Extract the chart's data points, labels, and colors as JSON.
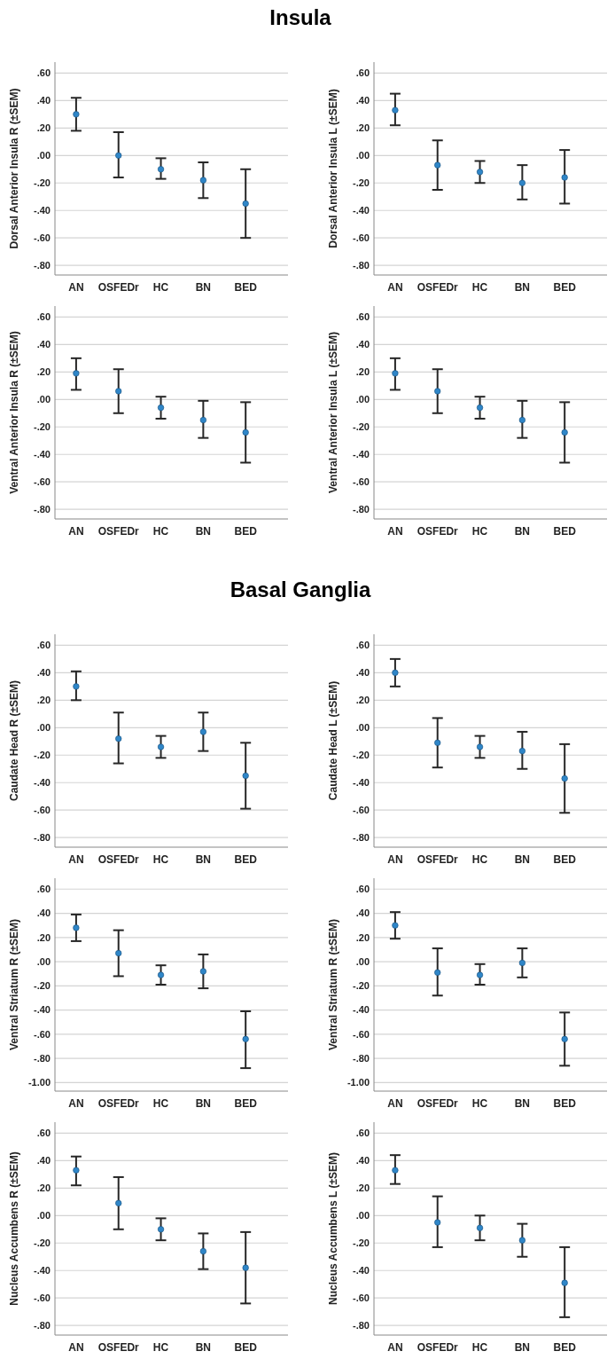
{
  "chart_data": [
    {
      "type": "scatter",
      "title": "Insula",
      "ylabel": "Dorsal Anterior Insula R (±SEM)",
      "categories": [
        "AN",
        "OSFEDr",
        "HC",
        "BN",
        "BED"
      ],
      "ylim": [
        -0.87,
        0.68
      ],
      "yticks": [
        {
          "value": -0.8,
          "label": "-.80"
        },
        {
          "value": -0.6,
          "label": "-.60"
        },
        {
          "value": -0.4,
          "label": "-.40"
        },
        {
          "value": -0.2,
          "label": "-.20"
        },
        {
          "value": 0,
          "label": ".00"
        },
        {
          "value": 0.2,
          "label": ".20"
        },
        {
          "value": 0.4,
          "label": ".40"
        },
        {
          "value": 0.6,
          "label": ".60"
        }
      ],
      "grid": "y",
      "marker": "circle",
      "series": [
        {
          "color": "#2f86c8",
          "values": [
            0.3,
            0.0,
            -0.1,
            -0.18,
            -0.35
          ],
          "errors": [
            [
              0.18,
              0.42
            ],
            [
              -0.16,
              0.17
            ],
            [
              -0.17,
              -0.02
            ],
            [
              -0.31,
              -0.05
            ],
            [
              -0.6,
              -0.1
            ]
          ]
        }
      ]
    },
    {
      "type": "scatter",
      "ylabel": "Dorsal Anterior Insula L (±SEM)",
      "categories": [
        "AN",
        "OSFEDr",
        "HC",
        "BN",
        "BED"
      ],
      "ylim": [
        -0.87,
        0.68
      ],
      "yticks": [
        {
          "value": -0.8,
          "label": "-.80"
        },
        {
          "value": -0.6,
          "label": "-.60"
        },
        {
          "value": -0.4,
          "label": "-.40"
        },
        {
          "value": -0.2,
          "label": "-.20"
        },
        {
          "value": 0,
          "label": ".00"
        },
        {
          "value": 0.2,
          "label": ".20"
        },
        {
          "value": 0.4,
          "label": ".40"
        },
        {
          "value": 0.6,
          "label": ".60"
        }
      ],
      "grid": "y",
      "marker": "circle",
      "series": [
        {
          "color": "#2f86c8",
          "values": [
            0.33,
            -0.07,
            -0.12,
            -0.2,
            -0.16
          ],
          "errors": [
            [
              0.22,
              0.45
            ],
            [
              -0.25,
              0.11
            ],
            [
              -0.2,
              -0.04
            ],
            [
              -0.32,
              -0.07
            ],
            [
              -0.35,
              0.04
            ]
          ]
        }
      ]
    },
    {
      "type": "scatter",
      "ylabel": "Ventral Anterior Insula R (±SEM)",
      "categories": [
        "AN",
        "OSFEDr",
        "HC",
        "BN",
        "BED"
      ],
      "ylim": [
        -0.87,
        0.68
      ],
      "yticks": [
        {
          "value": -0.8,
          "label": "-.80"
        },
        {
          "value": -0.6,
          "label": "-.60"
        },
        {
          "value": -0.4,
          "label": "-.40"
        },
        {
          "value": -0.2,
          "label": "-.20"
        },
        {
          "value": 0,
          "label": ".00"
        },
        {
          "value": 0.2,
          "label": ".20"
        },
        {
          "value": 0.4,
          "label": ".40"
        },
        {
          "value": 0.6,
          "label": ".60"
        }
      ],
      "grid": "y",
      "marker": "circle",
      "series": [
        {
          "color": "#2f86c8",
          "values": [
            0.19,
            0.06,
            -0.06,
            -0.15,
            -0.24
          ],
          "errors": [
            [
              0.07,
              0.3
            ],
            [
              -0.1,
              0.22
            ],
            [
              -0.14,
              0.02
            ],
            [
              -0.28,
              -0.01
            ],
            [
              -0.46,
              -0.02
            ]
          ]
        }
      ]
    },
    {
      "type": "scatter",
      "ylabel": "Ventral Anterior Insula L (±SEM)",
      "categories": [
        "AN",
        "OSFEDr",
        "HC",
        "BN",
        "BED"
      ],
      "ylim": [
        -0.87,
        0.68
      ],
      "yticks": [
        {
          "value": -0.8,
          "label": "-.80"
        },
        {
          "value": -0.6,
          "label": "-.60"
        },
        {
          "value": -0.4,
          "label": "-.40"
        },
        {
          "value": -0.2,
          "label": "-.20"
        },
        {
          "value": 0,
          "label": ".00"
        },
        {
          "value": 0.2,
          "label": ".20"
        },
        {
          "value": 0.4,
          "label": ".40"
        },
        {
          "value": 0.6,
          "label": ".60"
        }
      ],
      "grid": "y",
      "marker": "circle",
      "series": [
        {
          "color": "#2f86c8",
          "values": [
            0.19,
            0.06,
            -0.06,
            -0.15,
            -0.24
          ],
          "errors": [
            [
              0.07,
              0.3
            ],
            [
              -0.1,
              0.22
            ],
            [
              -0.14,
              0.02
            ],
            [
              -0.28,
              -0.01
            ],
            [
              -0.46,
              -0.02
            ]
          ]
        }
      ]
    },
    {
      "type": "scatter",
      "title": "Basal Ganglia",
      "ylabel": "Caudate Head R (±SEM)",
      "categories": [
        "AN",
        "OSFEDr",
        "HC",
        "BN",
        "BED"
      ],
      "ylim": [
        -0.87,
        0.68
      ],
      "yticks": [
        {
          "value": -0.8,
          "label": "-.80"
        },
        {
          "value": -0.6,
          "label": "-.60"
        },
        {
          "value": -0.4,
          "label": "-.40"
        },
        {
          "value": -0.2,
          "label": "-.20"
        },
        {
          "value": 0,
          "label": ".00"
        },
        {
          "value": 0.2,
          "label": ".20"
        },
        {
          "value": 0.4,
          "label": ".40"
        },
        {
          "value": 0.6,
          "label": ".60"
        }
      ],
      "grid": "y",
      "marker": "circle",
      "series": [
        {
          "color": "#2f86c8",
          "values": [
            0.3,
            -0.08,
            -0.14,
            -0.03,
            -0.35
          ],
          "errors": [
            [
              0.2,
              0.41
            ],
            [
              -0.26,
              0.11
            ],
            [
              -0.22,
              -0.06
            ],
            [
              -0.17,
              0.11
            ],
            [
              -0.59,
              -0.11
            ]
          ]
        }
      ]
    },
    {
      "type": "scatter",
      "ylabel": "Caudate Head L (±SEM)",
      "categories": [
        "AN",
        "OSFEDr",
        "HC",
        "BN",
        "BED"
      ],
      "ylim": [
        -0.87,
        0.68
      ],
      "yticks": [
        {
          "value": -0.8,
          "label": "-.80"
        },
        {
          "value": -0.6,
          "label": "-.60"
        },
        {
          "value": -0.4,
          "label": "-.40"
        },
        {
          "value": -0.2,
          "label": "-.20"
        },
        {
          "value": 0,
          "label": ".00"
        },
        {
          "value": 0.2,
          "label": ".20"
        },
        {
          "value": 0.4,
          "label": ".40"
        },
        {
          "value": 0.6,
          "label": ".60"
        }
      ],
      "grid": "y",
      "marker": "circle",
      "series": [
        {
          "color": "#2f86c8",
          "values": [
            0.4,
            -0.11,
            -0.14,
            -0.17,
            -0.37
          ],
          "errors": [
            [
              0.3,
              0.5
            ],
            [
              -0.29,
              0.07
            ],
            [
              -0.22,
              -0.06
            ],
            [
              -0.3,
              -0.03
            ],
            [
              -0.62,
              -0.12
            ]
          ]
        }
      ]
    },
    {
      "type": "scatter",
      "ylabel": "Ventral Striatum R (±SEM)",
      "categories": [
        "AN",
        "OSFEDr",
        "HC",
        "BN",
        "BED"
      ],
      "ylim": [
        -1.07,
        0.69
      ],
      "yticks": [
        {
          "value": -1,
          "label": "-1.00"
        },
        {
          "value": -0.8,
          "label": "-.80"
        },
        {
          "value": -0.6,
          "label": "-.60"
        },
        {
          "value": -0.4,
          "label": "-.40"
        },
        {
          "value": -0.2,
          "label": "-.20"
        },
        {
          "value": 0,
          "label": ".00"
        },
        {
          "value": 0.2,
          "label": ".20"
        },
        {
          "value": 0.4,
          "label": ".40"
        },
        {
          "value": 0.6,
          "label": ".60"
        }
      ],
      "grid": "y",
      "marker": "circle",
      "series": [
        {
          "color": "#2f86c8",
          "values": [
            0.28,
            0.07,
            -0.11,
            -0.08,
            -0.64
          ],
          "errors": [
            [
              0.17,
              0.39
            ],
            [
              -0.12,
              0.26
            ],
            [
              -0.19,
              -0.03
            ],
            [
              -0.22,
              0.06
            ],
            [
              -0.88,
              -0.41
            ]
          ]
        }
      ]
    },
    {
      "type": "scatter",
      "ylabel": "Ventral Striatum R (±SEM)",
      "categories": [
        "AN",
        "OSFEDr",
        "HC",
        "BN",
        "BED"
      ],
      "ylim": [
        -1.07,
        0.69
      ],
      "yticks": [
        {
          "value": -1,
          "label": "-1.00"
        },
        {
          "value": -0.8,
          "label": "-.80"
        },
        {
          "value": -0.6,
          "label": "-.60"
        },
        {
          "value": -0.4,
          "label": "-.40"
        },
        {
          "value": -0.2,
          "label": "-.20"
        },
        {
          "value": 0,
          "label": ".00"
        },
        {
          "value": 0.2,
          "label": ".20"
        },
        {
          "value": 0.4,
          "label": ".40"
        },
        {
          "value": 0.6,
          "label": ".60"
        }
      ],
      "grid": "y",
      "marker": "circle",
      "series": [
        {
          "color": "#2f86c8",
          "values": [
            0.3,
            -0.09,
            -0.11,
            -0.01,
            -0.64
          ],
          "errors": [
            [
              0.19,
              0.41
            ],
            [
              -0.28,
              0.11
            ],
            [
              -0.19,
              -0.02
            ],
            [
              -0.13,
              0.11
            ],
            [
              -0.86,
              -0.42
            ]
          ]
        }
      ]
    },
    {
      "type": "scatter",
      "ylabel": "Nucleus Accumbens R (±SEM)",
      "categories": [
        "AN",
        "OSFEDr",
        "HC",
        "BN",
        "BED"
      ],
      "ylim": [
        -0.87,
        0.68
      ],
      "yticks": [
        {
          "value": -0.8,
          "label": "-.80"
        },
        {
          "value": -0.6,
          "label": "-.60"
        },
        {
          "value": -0.4,
          "label": "-.40"
        },
        {
          "value": -0.2,
          "label": "-.20"
        },
        {
          "value": 0,
          "label": ".00"
        },
        {
          "value": 0.2,
          "label": ".20"
        },
        {
          "value": 0.4,
          "label": ".40"
        },
        {
          "value": 0.6,
          "label": ".60"
        }
      ],
      "grid": "y",
      "marker": "circle",
      "series": [
        {
          "color": "#2f86c8",
          "values": [
            0.33,
            0.09,
            -0.1,
            -0.26,
            -0.38
          ],
          "errors": [
            [
              0.22,
              0.43
            ],
            [
              -0.1,
              0.28
            ],
            [
              -0.18,
              -0.02
            ],
            [
              -0.39,
              -0.13
            ],
            [
              -0.64,
              -0.12
            ]
          ]
        }
      ]
    },
    {
      "type": "scatter",
      "ylabel": "Nucleus Accumbens L (±SEM)",
      "categories": [
        "AN",
        "OSFEDr",
        "HC",
        "BN",
        "BED"
      ],
      "ylim": [
        -0.87,
        0.68
      ],
      "yticks": [
        {
          "value": -0.8,
          "label": "-.80"
        },
        {
          "value": -0.6,
          "label": "-.60"
        },
        {
          "value": -0.4,
          "label": "-.40"
        },
        {
          "value": -0.2,
          "label": "-.20"
        },
        {
          "value": 0,
          "label": ".00"
        },
        {
          "value": 0.2,
          "label": ".20"
        },
        {
          "value": 0.4,
          "label": ".40"
        },
        {
          "value": 0.6,
          "label": ".60"
        }
      ],
      "grid": "y",
      "marker": "circle",
      "series": [
        {
          "color": "#2f86c8",
          "values": [
            0.33,
            -0.05,
            -0.09,
            -0.18,
            -0.49
          ],
          "errors": [
            [
              0.23,
              0.44
            ],
            [
              -0.23,
              0.14
            ],
            [
              -0.18,
              0.0
            ],
            [
              -0.3,
              -0.06
            ],
            [
              -0.74,
              -0.23
            ]
          ]
        }
      ]
    }
  ]
}
